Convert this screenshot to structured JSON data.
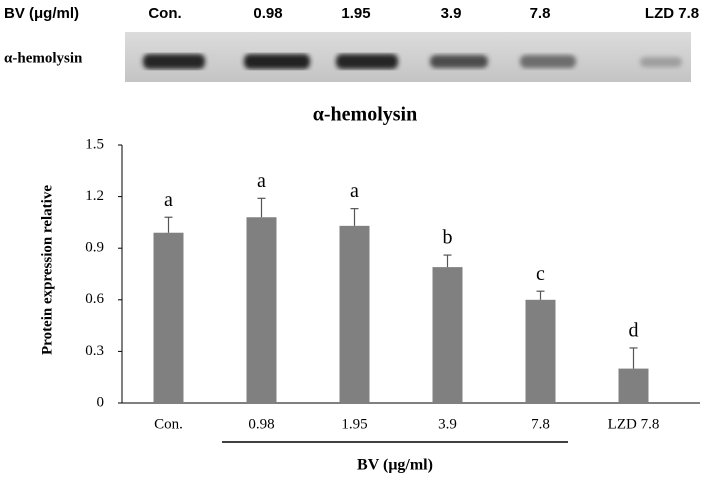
{
  "blot": {
    "header": "BV (μg/ml)",
    "lanes": [
      "Con.",
      "0.98",
      "1.95",
      "3.9",
      "7.8",
      "LZD 7.8"
    ],
    "row_label": "α-hemolysin"
  },
  "chart_data": {
    "type": "bar",
    "title": "α-hemolysin",
    "y_label": "Protein expression relative",
    "x_label": "BV (μg/ml)",
    "categories": [
      "Con.",
      "0.98",
      "1.95",
      "3.9",
      "7.8",
      "LZD 7.8"
    ],
    "values": [
      0.99,
      1.08,
      1.03,
      0.79,
      0.6,
      0.2
    ],
    "errors": [
      0.09,
      0.11,
      0.1,
      0.07,
      0.05,
      0.12
    ],
    "labels": [
      "a",
      "a",
      "a",
      "b",
      "c",
      "d"
    ],
    "color": "#808080",
    "ylim": [
      0,
      1.5
    ],
    "yticks": [
      0,
      0.3,
      0.6,
      0.9,
      1.2,
      1.5
    ]
  }
}
